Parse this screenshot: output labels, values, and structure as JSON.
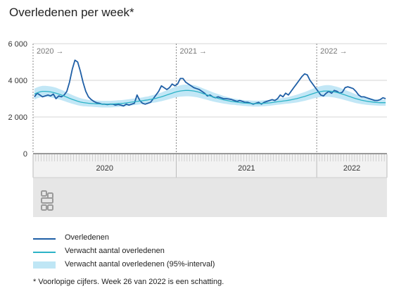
{
  "header": {
    "title": "Overledenen per week*"
  },
  "chart_data": {
    "type": "line",
    "title": "Overledenen per week*",
    "ylim": [
      0,
      6000
    ],
    "y_ticks": [
      {
        "value": 0,
        "label": "0"
      },
      {
        "value": 2000,
        "label": "2 000"
      },
      {
        "value": 4000,
        "label": "4 000"
      },
      {
        "value": 6000,
        "label": "6 000"
      }
    ],
    "x_unit": "week",
    "years": [
      {
        "label": "2020",
        "period_label": "2020 →",
        "weeks": 53
      },
      {
        "label": "2021",
        "period_label": "2021 →",
        "weeks": 52
      },
      {
        "label": "2022",
        "period_label": "2022 →",
        "weeks": 26
      }
    ],
    "series": [
      {
        "name": "Overledenen",
        "color": "#1f5fa6",
        "values": [
          3100,
          3300,
          3200,
          3100,
          3150,
          3200,
          3150,
          3250,
          3000,
          3150,
          3100,
          3200,
          3400,
          3900,
          4600,
          5100,
          5000,
          4500,
          3900,
          3400,
          3100,
          2950,
          2850,
          2780,
          2750,
          2700,
          2700,
          2680,
          2700,
          2700,
          2650,
          2680,
          2650,
          2600,
          2700,
          2650,
          2700,
          2750,
          3200,
          2900,
          2750,
          2700,
          2750,
          2800,
          3000,
          3200,
          3400,
          3700,
          3600,
          3500,
          3600,
          3800,
          3700,
          3800,
          4100,
          4100,
          3900,
          3800,
          3700,
          3600,
          3550,
          3500,
          3400,
          3300,
          3150,
          3200,
          3100,
          3050,
          3100,
          3050,
          3000,
          3000,
          2980,
          2950,
          2900,
          2850,
          2900,
          2850,
          2800,
          2800,
          2750,
          2700,
          2750,
          2800,
          2700,
          2800,
          2850,
          2900,
          2950,
          2900,
          3000,
          3200,
          3100,
          3300,
          3200,
          3400,
          3600,
          3800,
          4000,
          4200,
          4350,
          4300,
          4000,
          3800,
          3600,
          3400,
          3200,
          3150,
          3300,
          3400,
          3300,
          3450,
          3400,
          3300,
          3350,
          3600,
          3650,
          3600,
          3550,
          3400,
          3200,
          3100,
          3100,
          3050,
          3000,
          2950,
          2900,
          2900,
          2950,
          3050,
          3000
        ]
      },
      {
        "name": "Verwacht aantal overledenen",
        "color": "#2cb3c7",
        "values": [
          3250,
          3320,
          3370,
          3400,
          3400,
          3390,
          3370,
          3340,
          3300,
          3250,
          3200,
          3140,
          3080,
          3020,
          2960,
          2910,
          2860,
          2820,
          2790,
          2770,
          2750,
          2740,
          2730,
          2720,
          2710,
          2700,
          2700,
          2700,
          2700,
          2710,
          2720,
          2730,
          2740,
          2750,
          2770,
          2790,
          2810,
          2830,
          2850,
          2870,
          2890,
          2910,
          2930,
          2960,
          2990,
          3020,
          3060,
          3100,
          3150,
          3200,
          3250,
          3300,
          3350,
          3390,
          3420,
          3440,
          3450,
          3450,
          3440,
          3420,
          3390,
          3350,
          3300,
          3250,
          3200,
          3150,
          3100,
          3060,
          3020,
          2980,
          2940,
          2910,
          2880,
          2850,
          2830,
          2810,
          2790,
          2770,
          2760,
          2750,
          2740,
          2730,
          2730,
          2730,
          2740,
          2750,
          2760,
          2770,
          2790,
          2810,
          2830,
          2850,
          2870,
          2890,
          2910,
          2940,
          2970,
          3000,
          3040,
          3080,
          3120,
          3170,
          3220,
          3270,
          3320,
          3360,
          3390,
          3410,
          3420,
          3420,
          3400,
          3370,
          3340,
          3300,
          3250,
          3200,
          3150,
          3100,
          3050,
          3000,
          2960,
          2920,
          2890,
          2860,
          2840,
          2820,
          2800,
          2790,
          2780,
          2780,
          2780
        ]
      },
      {
        "name": "Verwacht aantal overledenen (95%-interval)",
        "color": "#bfe6f5",
        "band": true,
        "lower": [
          2950,
          3020,
          3070,
          3100,
          3100,
          3090,
          3070,
          3040,
          3000,
          2960,
          2920,
          2870,
          2820,
          2770,
          2720,
          2680,
          2640,
          2610,
          2590,
          2580,
          2570,
          2560,
          2550,
          2540,
          2530,
          2520,
          2520,
          2520,
          2520,
          2530,
          2540,
          2550,
          2560,
          2570,
          2590,
          2610,
          2630,
          2650,
          2670,
          2690,
          2710,
          2720,
          2740,
          2760,
          2780,
          2800,
          2830,
          2860,
          2900,
          2940,
          2980,
          3020,
          3060,
          3090,
          3110,
          3120,
          3130,
          3130,
          3120,
          3100,
          3080,
          3050,
          3010,
          2970,
          2930,
          2890,
          2850,
          2820,
          2790,
          2760,
          2730,
          2710,
          2690,
          2670,
          2660,
          2640,
          2630,
          2610,
          2600,
          2590,
          2580,
          2570,
          2570,
          2570,
          2580,
          2590,
          2600,
          2610,
          2630,
          2650,
          2670,
          2680,
          2700,
          2720,
          2730,
          2750,
          2770,
          2790,
          2820,
          2850,
          2880,
          2920,
          2960,
          3000,
          3040,
          3070,
          3090,
          3100,
          3100,
          3100,
          3080,
          3060,
          3030,
          3000,
          2960,
          2920,
          2880,
          2840,
          2800,
          2760,
          2730,
          2700,
          2680,
          2660,
          2650,
          2640,
          2630,
          2620,
          2610,
          2610,
          2610
        ],
        "upper": [
          3550,
          3620,
          3670,
          3700,
          3700,
          3690,
          3670,
          3640,
          3600,
          3540,
          3480,
          3410,
          3340,
          3270,
          3200,
          3140,
          3080,
          3030,
          2990,
          2960,
          2930,
          2920,
          2910,
          2900,
          2890,
          2880,
          2880,
          2880,
          2880,
          2890,
          2900,
          2910,
          2920,
          2930,
          2950,
          2970,
          2990,
          3010,
          3030,
          3050,
          3070,
          3100,
          3120,
          3160,
          3200,
          3240,
          3290,
          3340,
          3400,
          3460,
          3520,
          3580,
          3640,
          3690,
          3730,
          3760,
          3770,
          3770,
          3760,
          3740,
          3700,
          3650,
          3590,
          3530,
          3470,
          3410,
          3350,
          3300,
          3250,
          3200,
          3150,
          3110,
          3070,
          3030,
          3000,
          2980,
          2950,
          2930,
          2920,
          2910,
          2900,
          2890,
          2890,
          2890,
          2900,
          2910,
          2920,
          2930,
          2950,
          2970,
          2990,
          3020,
          3040,
          3060,
          3090,
          3130,
          3170,
          3210,
          3260,
          3310,
          3360,
          3420,
          3480,
          3540,
          3600,
          3650,
          3690,
          3720,
          3740,
          3740,
          3720,
          3680,
          3650,
          3600,
          3540,
          3480,
          3420,
          3360,
          3300,
          3240,
          3190,
          3140,
          3100,
          3060,
          3030,
          3000,
          2970,
          2960,
          2950,
          2950,
          2950
        ]
      }
    ],
    "legend": {
      "position": "bottom",
      "items": [
        {
          "label": "Overledenen",
          "kind": "line"
        },
        {
          "label": "Verwacht aantal overledenen",
          "kind": "line"
        },
        {
          "label": "Verwacht aantal overledenen (95%-interval)",
          "kind": "band"
        }
      ]
    },
    "footnote": "* Voorlopige cijfers. Week 26 van 2022 is een schatting.",
    "grid": true
  }
}
